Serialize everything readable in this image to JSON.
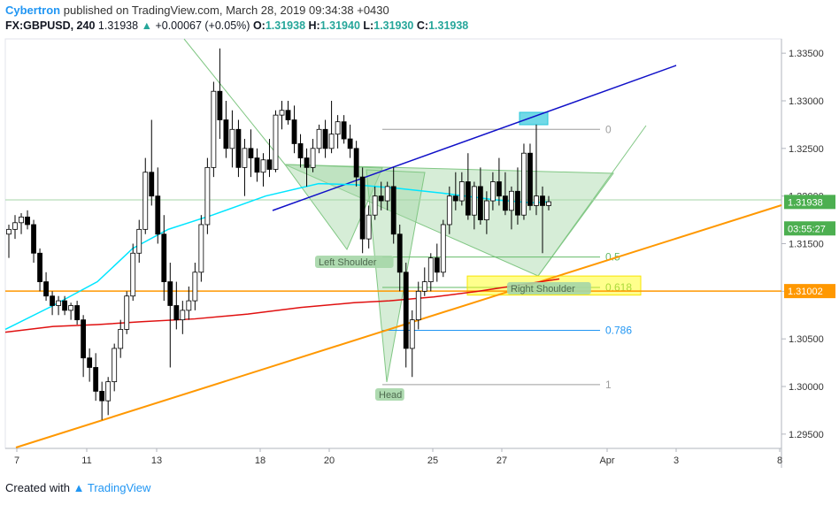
{
  "header": {
    "author": "Cybertron",
    "published_text": "published on TradingView.com, March 28, 2019 09:34:38 +0430",
    "symbol": "FX:GBPUSD, 240",
    "last": "1.31938",
    "change": "+0.00067 (+0.05%)",
    "o_label": "O:",
    "o_value": "1.31938",
    "h_label": "H:",
    "h_value": "1.31940",
    "l_label": "L:",
    "l_value": "1.31930",
    "c_label": "C:",
    "c_value": "1.31938"
  },
  "footer": {
    "created_with": "Created with",
    "brand": "TradingView"
  },
  "colors": {
    "bull": "#ffffff",
    "bear": "#000000",
    "ma_cyan": "#00e5ff",
    "ma_red": "#e01010",
    "trend_blue": "#1010c8",
    "trend_orange": "#ff9800",
    "pattern_fill": "#a5d6a7",
    "fib_gray": "#9e9e9e",
    "fib_green": "#66bb6a",
    "fib_blue": "#2196f3"
  },
  "chart_data": {
    "type": "candlestick",
    "y_range": [
      1.2935,
      1.3365
    ],
    "x_tick_labels": [
      "7",
      "11",
      "13",
      "18",
      "20",
      "25",
      "27",
      "Apr",
      "3",
      "8"
    ],
    "y_tick_labels": [
      "1.33500",
      "1.33000",
      "1.32500",
      "1.32000",
      "1.31500",
      "1.31000",
      "1.30500",
      "1.30000",
      "1.29500"
    ],
    "price_badges": [
      {
        "label": "1.31938",
        "value": 1.31938,
        "color": "#4caf50"
      },
      {
        "label": "03:55:27",
        "value": 1.3166,
        "color": "#4caf50"
      },
      {
        "label": "1.31002",
        "value": 1.31002,
        "color": "#ff9800"
      }
    ],
    "fib_levels": [
      {
        "label": "0",
        "value": 1.327
      },
      {
        "label": "0.5",
        "value": 1.3136
      },
      {
        "label": "0.618",
        "value": 1.3104
      },
      {
        "label": "0.786",
        "value": 1.3059
      },
      {
        "label": "1",
        "value": 1.3002
      }
    ],
    "annotations": [
      "Left Shoulder",
      "Head",
      "Right Shoulder"
    ],
    "horizontal_line": 1.31002,
    "candles": [
      [
        1.316,
        1.317,
        1.3135,
        1.3165
      ],
      [
        1.3165,
        1.318,
        1.3155,
        1.3172
      ],
      [
        1.3172,
        1.3182,
        1.316,
        1.3178
      ],
      [
        1.3178,
        1.3185,
        1.3165,
        1.317
      ],
      [
        1.317,
        1.3175,
        1.313,
        1.314
      ],
      [
        1.314,
        1.3145,
        1.31,
        1.311
      ],
      [
        1.311,
        1.312,
        1.309,
        1.3095
      ],
      [
        1.3095,
        1.31,
        1.3075,
        1.3085
      ],
      [
        1.3085,
        1.3095,
        1.3075,
        1.309
      ],
      [
        1.309,
        1.3095,
        1.3075,
        1.308
      ],
      [
        1.308,
        1.3088,
        1.307,
        1.3085
      ],
      [
        1.3085,
        1.309,
        1.3065,
        1.307
      ],
      [
        1.307,
        1.3075,
        1.301,
        1.303
      ],
      [
        1.303,
        1.304,
        1.3005,
        1.302
      ],
      [
        1.302,
        1.3035,
        1.2985,
        1.2995
      ],
      [
        1.2995,
        1.3005,
        1.2965,
        1.2985
      ],
      [
        1.2985,
        1.301,
        1.297,
        1.3005
      ],
      [
        1.3005,
        1.3045,
        1.2995,
        1.304
      ],
      [
        1.304,
        1.307,
        1.303,
        1.306
      ],
      [
        1.306,
        1.31,
        1.3055,
        1.3095
      ],
      [
        1.3095,
        1.315,
        1.309,
        1.314
      ],
      [
        1.314,
        1.3175,
        1.313,
        1.3165
      ],
      [
        1.3165,
        1.324,
        1.316,
        1.3225
      ],
      [
        1.3225,
        1.328,
        1.319,
        1.32
      ],
      [
        1.32,
        1.323,
        1.315,
        1.316
      ],
      [
        1.316,
        1.318,
        1.309,
        1.311
      ],
      [
        1.311,
        1.313,
        1.302,
        1.3085
      ],
      [
        1.3085,
        1.311,
        1.306,
        1.307
      ],
      [
        1.307,
        1.309,
        1.3055,
        1.308
      ],
      [
        1.308,
        1.3105,
        1.307,
        1.309
      ],
      [
        1.309,
        1.313,
        1.308,
        1.312
      ],
      [
        1.312,
        1.318,
        1.311,
        1.317
      ],
      [
        1.317,
        1.324,
        1.316,
        1.323
      ],
      [
        1.323,
        1.332,
        1.322,
        1.331
      ],
      [
        1.331,
        1.3355,
        1.326,
        1.328
      ],
      [
        1.328,
        1.33,
        1.324,
        1.325
      ],
      [
        1.325,
        1.329,
        1.323,
        1.327
      ],
      [
        1.327,
        1.328,
        1.322,
        1.323
      ],
      [
        1.323,
        1.326,
        1.32,
        1.325
      ],
      [
        1.325,
        1.327,
        1.322,
        1.324
      ],
      [
        1.324,
        1.325,
        1.3215,
        1.3225
      ],
      [
        1.3225,
        1.3245,
        1.321,
        1.3238
      ],
      [
        1.3238,
        1.326,
        1.322,
        1.3228
      ],
      [
        1.3228,
        1.329,
        1.3225,
        1.3285
      ],
      [
        1.3285,
        1.33,
        1.327,
        1.329
      ],
      [
        1.329,
        1.33,
        1.3275,
        1.328
      ],
      [
        1.328,
        1.3295,
        1.3245,
        1.3255
      ],
      [
        1.3255,
        1.3265,
        1.323,
        1.324
      ],
      [
        1.324,
        1.325,
        1.321,
        1.323
      ],
      [
        1.323,
        1.326,
        1.3225,
        1.325
      ],
      [
        1.325,
        1.3275,
        1.3245,
        1.327
      ],
      [
        1.327,
        1.328,
        1.324,
        1.325
      ],
      [
        1.325,
        1.33,
        1.3245,
        1.3265
      ],
      [
        1.3265,
        1.3285,
        1.325,
        1.3278
      ],
      [
        1.3278,
        1.3285,
        1.3255,
        1.326
      ],
      [
        1.326,
        1.3275,
        1.324,
        1.325
      ],
      [
        1.325,
        1.3258,
        1.321,
        1.322
      ],
      [
        1.322,
        1.323,
        1.314,
        1.3155
      ],
      [
        1.3155,
        1.319,
        1.3145,
        1.318
      ],
      [
        1.318,
        1.321,
        1.3175,
        1.32
      ],
      [
        1.32,
        1.3215,
        1.3185,
        1.3195
      ],
      [
        1.3195,
        1.3215,
        1.3185,
        1.321
      ],
      [
        1.321,
        1.323,
        1.315,
        1.316
      ],
      [
        1.316,
        1.317,
        1.31,
        1.312
      ],
      [
        1.312,
        1.313,
        1.302,
        1.304
      ],
      [
        1.304,
        1.308,
        1.301,
        1.307
      ],
      [
        1.307,
        1.311,
        1.306,
        1.31
      ],
      [
        1.31,
        1.3125,
        1.3095,
        1.311
      ],
      [
        1.311,
        1.314,
        1.31,
        1.3135
      ],
      [
        1.3135,
        1.315,
        1.311,
        1.312
      ],
      [
        1.312,
        1.3175,
        1.3115,
        1.317
      ],
      [
        1.317,
        1.321,
        1.316,
        1.32
      ],
      [
        1.32,
        1.3225,
        1.3185,
        1.3195
      ],
      [
        1.3195,
        1.3225,
        1.319,
        1.3215
      ],
      [
        1.3215,
        1.3245,
        1.3175,
        1.318
      ],
      [
        1.318,
        1.3215,
        1.3165,
        1.321
      ],
      [
        1.321,
        1.323,
        1.317,
        1.3175
      ],
      [
        1.3175,
        1.3205,
        1.316,
        1.3195
      ],
      [
        1.3195,
        1.3225,
        1.3185,
        1.3215
      ],
      [
        1.3215,
        1.324,
        1.319,
        1.32
      ],
      [
        1.32,
        1.3225,
        1.318,
        1.3185
      ],
      [
        1.3185,
        1.321,
        1.3165,
        1.3205
      ],
      [
        1.3205,
        1.323,
        1.317,
        1.318
      ],
      [
        1.318,
        1.3255,
        1.3175,
        1.3245
      ],
      [
        1.3245,
        1.3255,
        1.3185,
        1.319
      ],
      [
        1.319,
        1.3275,
        1.318,
        1.32
      ],
      [
        1.32,
        1.321,
        1.314,
        1.319
      ],
      [
        1.319,
        1.32,
        1.3185,
        1.3194
      ]
    ],
    "ma_cyan": [
      1.306,
      1.3085,
      1.311,
      1.3145,
      1.3165,
      1.318,
      1.32,
      1.3213,
      1.3212,
      1.3208,
      1.3203,
      1.3196,
      1.3193,
      1.3194
    ],
    "ma_red": [
      1.3057,
      1.3063,
      1.3065,
      1.3068,
      1.3071,
      1.3076,
      1.3083,
      1.3088,
      1.309,
      1.3094,
      1.31,
      1.3107,
      1.3113
    ]
  }
}
